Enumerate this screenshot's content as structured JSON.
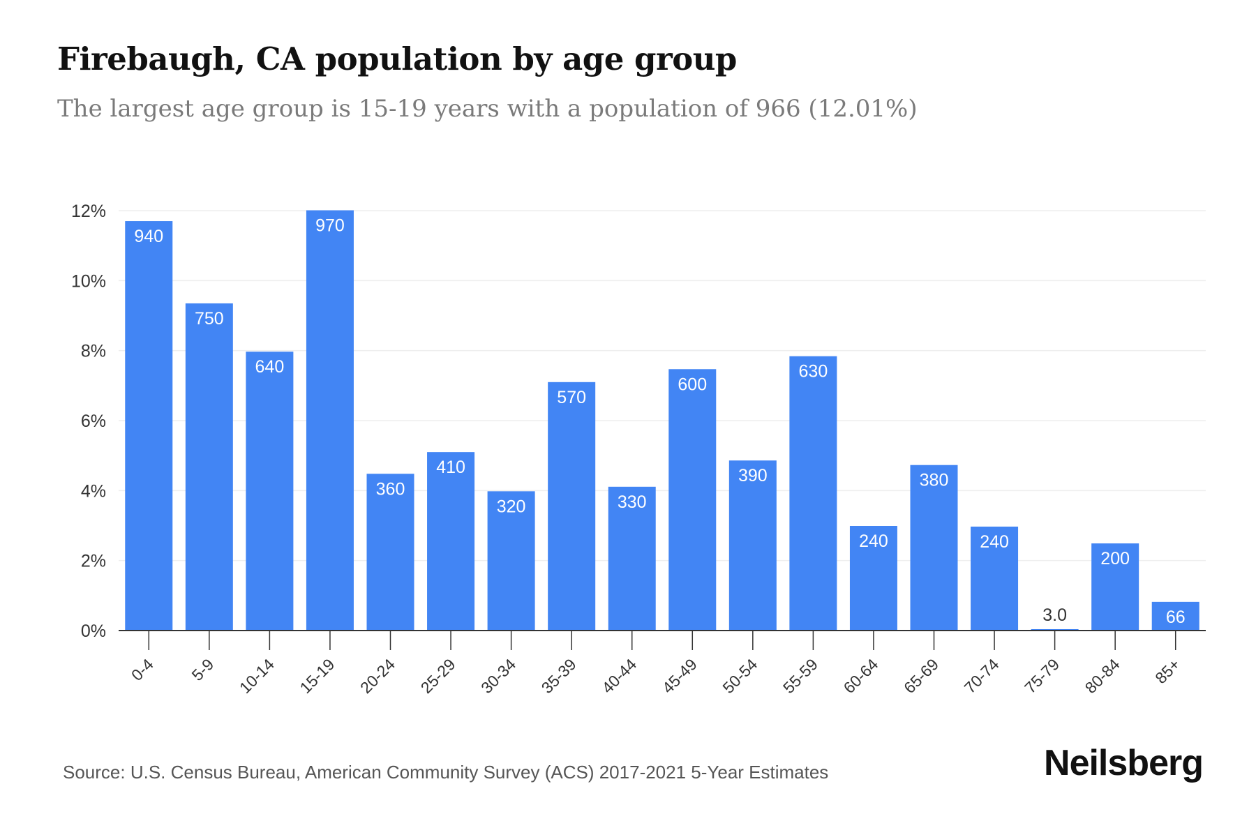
{
  "chart_data": {
    "type": "bar",
    "title": "Firebaugh, CA population by age group",
    "subtitle": "The largest age group is 15-19 years with a population of 966 (12.01%)",
    "xlabel": "",
    "ylabel": "",
    "categories": [
      "0-4",
      "5-9",
      "10-14",
      "15-19",
      "20-24",
      "25-29",
      "30-34",
      "35-39",
      "40-44",
      "45-49",
      "50-54",
      "55-59",
      "60-64",
      "65-69",
      "70-74",
      "75-79",
      "80-84",
      "85+"
    ],
    "values": [
      11.7,
      9.35,
      7.97,
      12.01,
      4.48,
      5.1,
      3.98,
      7.1,
      4.11,
      7.47,
      4.86,
      7.84,
      2.99,
      4.73,
      2.97,
      0.04,
      2.49,
      0.82
    ],
    "data_labels": [
      "940",
      "750",
      "640",
      "970",
      "360",
      "410",
      "320",
      "570",
      "330",
      "600",
      "390",
      "630",
      "240",
      "380",
      "240",
      "3.0",
      "200",
      "66"
    ],
    "y_ticks": [
      "0%",
      "2%",
      "4%",
      "6%",
      "8%",
      "10%",
      "12%"
    ],
    "y_tick_values": [
      0,
      2,
      4,
      6,
      8,
      10,
      12
    ],
    "ylim": [
      0,
      12
    ],
    "grid": true,
    "legend": "none",
    "colors": {
      "bar": "#4285f4",
      "label_inside": "#ffffff",
      "label_outside": "#333333",
      "grid": "#eeeeee",
      "axis": "#333333"
    }
  },
  "footer": {
    "source": "Source: U.S. Census Bureau, American Community Survey (ACS) 2017-2021 5-Year Estimates",
    "brand": "Neilsberg"
  }
}
